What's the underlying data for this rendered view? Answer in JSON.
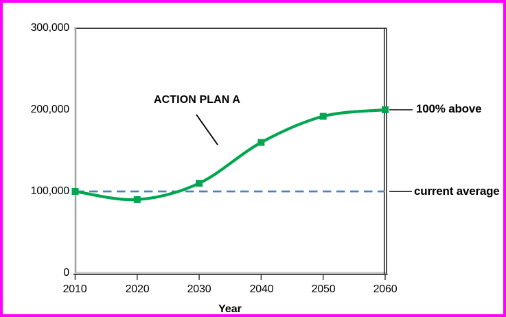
{
  "window": {
    "background": "#FFFFFF",
    "frame_color": "#FF00FF"
  },
  "chart_data": {
    "type": "line",
    "title": "",
    "xlabel": "Year",
    "ylabel": "",
    "x": [
      2010,
      2020,
      2030,
      2040,
      2050,
      2060
    ],
    "series": [
      {
        "name": "ACTION PLAN A",
        "values": [
          100000,
          90000,
          110000,
          160000,
          192000,
          200000
        ],
        "color": "#00A650",
        "marker": "square",
        "smooth": true
      }
    ],
    "reference_line": {
      "label": "current average",
      "value": 100000,
      "style": "dashed",
      "color": "#4F81BD"
    },
    "xlim": [
      2010,
      2060
    ],
    "ylim": [
      0,
      300000
    ],
    "y_tick_values": [
      300000,
      200000,
      100000,
      0
    ],
    "y_tick_labels": [
      "300,000",
      "200,000",
      "100,000",
      "0"
    ],
    "x_tick_labels": [
      "2010",
      "2020",
      "2030",
      "2040",
      "2050",
      "2060"
    ],
    "grid": false,
    "legend": "none",
    "annotations": [
      {
        "text": "ACTION PLAN A",
        "points_to": "curve between 2030 and 2040"
      },
      {
        "text": "100% above",
        "points_to": "2060 end of curve at 200,000"
      },
      {
        "text": "current average",
        "points_to": "dashed reference line at 100,000"
      }
    ]
  }
}
